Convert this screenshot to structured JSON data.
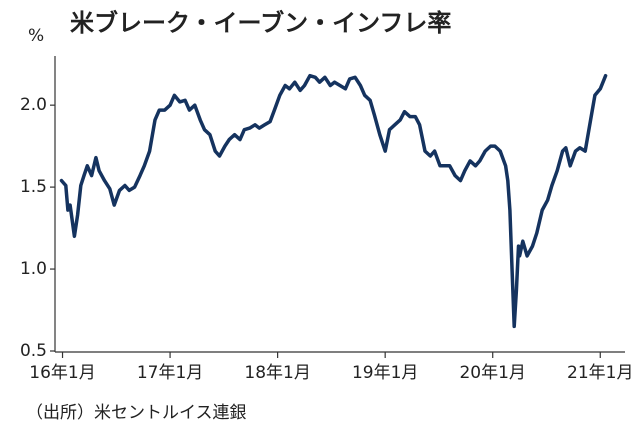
{
  "chart_data": {
    "type": "line",
    "title": "米ブレーク・イーブン・インフレ率",
    "y_label": "%",
    "source": "（出所）米セントルイス連銀",
    "color": "#15335f",
    "x": [
      15.99,
      16.03,
      16.05,
      16.07,
      16.11,
      16.14,
      16.17,
      16.2,
      16.23,
      16.27,
      16.31,
      16.34,
      16.39,
      16.44,
      16.48,
      16.53,
      16.58,
      16.62,
      16.67,
      16.72,
      16.76,
      16.81,
      16.86,
      16.9,
      16.95,
      17.0,
      17.04,
      17.09,
      17.14,
      17.18,
      17.23,
      17.28,
      17.32,
      17.37,
      17.42,
      17.46,
      17.51,
      17.55,
      17.6,
      17.65,
      17.69,
      17.74,
      17.79,
      17.83,
      17.88,
      17.93,
      17.97,
      18.02,
      18.07,
      18.11,
      18.16,
      18.21,
      18.25,
      18.3,
      18.35,
      18.39,
      18.44,
      18.49,
      18.53,
      18.58,
      18.63,
      18.67,
      18.72,
      18.77,
      18.81,
      18.86,
      18.9,
      18.95,
      19.0,
      19.04,
      19.09,
      19.14,
      19.18,
      19.23,
      19.28,
      19.32,
      19.37,
      19.42,
      19.46,
      19.51,
      19.56,
      19.6,
      19.65,
      19.7,
      19.74,
      19.79,
      19.84,
      19.88,
      19.93,
      19.98,
      20.02,
      20.07,
      20.12,
      20.14,
      20.16,
      20.18,
      20.2,
      20.22,
      20.24,
      20.25,
      20.28,
      20.32,
      20.37,
      20.41,
      20.46,
      20.51,
      20.55,
      20.6,
      20.65,
      20.68,
      20.72,
      20.77,
      20.81,
      20.86,
      20.91,
      20.95,
      21.0,
      21.05
    ],
    "values": [
      1.54,
      1.51,
      1.36,
      1.39,
      1.2,
      1.33,
      1.51,
      1.57,
      1.63,
      1.57,
      1.68,
      1.6,
      1.54,
      1.49,
      1.39,
      1.48,
      1.51,
      1.48,
      1.5,
      1.57,
      1.63,
      1.72,
      1.91,
      1.97,
      1.97,
      2.0,
      2.06,
      2.02,
      2.03,
      1.97,
      2.0,
      1.91,
      1.85,
      1.82,
      1.72,
      1.69,
      1.75,
      1.79,
      1.82,
      1.79,
      1.85,
      1.86,
      1.88,
      1.86,
      1.88,
      1.9,
      1.97,
      2.06,
      2.12,
      2.1,
      2.14,
      2.09,
      2.12,
      2.18,
      2.17,
      2.14,
      2.17,
      2.12,
      2.14,
      2.12,
      2.1,
      2.16,
      2.17,
      2.12,
      2.06,
      2.03,
      1.94,
      1.82,
      1.72,
      1.85,
      1.88,
      1.91,
      1.96,
      1.93,
      1.93,
      1.88,
      1.72,
      1.69,
      1.72,
      1.63,
      1.63,
      1.63,
      1.57,
      1.54,
      1.6,
      1.66,
      1.63,
      1.66,
      1.72,
      1.75,
      1.75,
      1.72,
      1.63,
      1.54,
      1.36,
      0.99,
      0.65,
      0.87,
      1.14,
      1.08,
      1.17,
      1.08,
      1.14,
      1.22,
      1.36,
      1.42,
      1.51,
      1.6,
      1.72,
      1.74,
      1.63,
      1.72,
      1.74,
      1.72,
      1.91,
      2.06,
      2.1,
      2.18
    ],
    "xlim": [
      15.93,
      21.23
    ],
    "xticks": [
      {
        "value": 16,
        "label": "16年1月"
      },
      {
        "value": 17,
        "label": "17年1月"
      },
      {
        "value": 18,
        "label": "18年1月"
      },
      {
        "value": 19,
        "label": "19年1月"
      },
      {
        "value": 20,
        "label": "20年1月"
      },
      {
        "value": 21,
        "label": "21年1月"
      }
    ],
    "ylim": [
      0.5,
      2.3
    ],
    "yticks": [
      {
        "value": 2,
        "label": "2.0"
      },
      1.5,
      {
        "value": 1,
        "label": "1.0"
      },
      0.5
    ]
  }
}
